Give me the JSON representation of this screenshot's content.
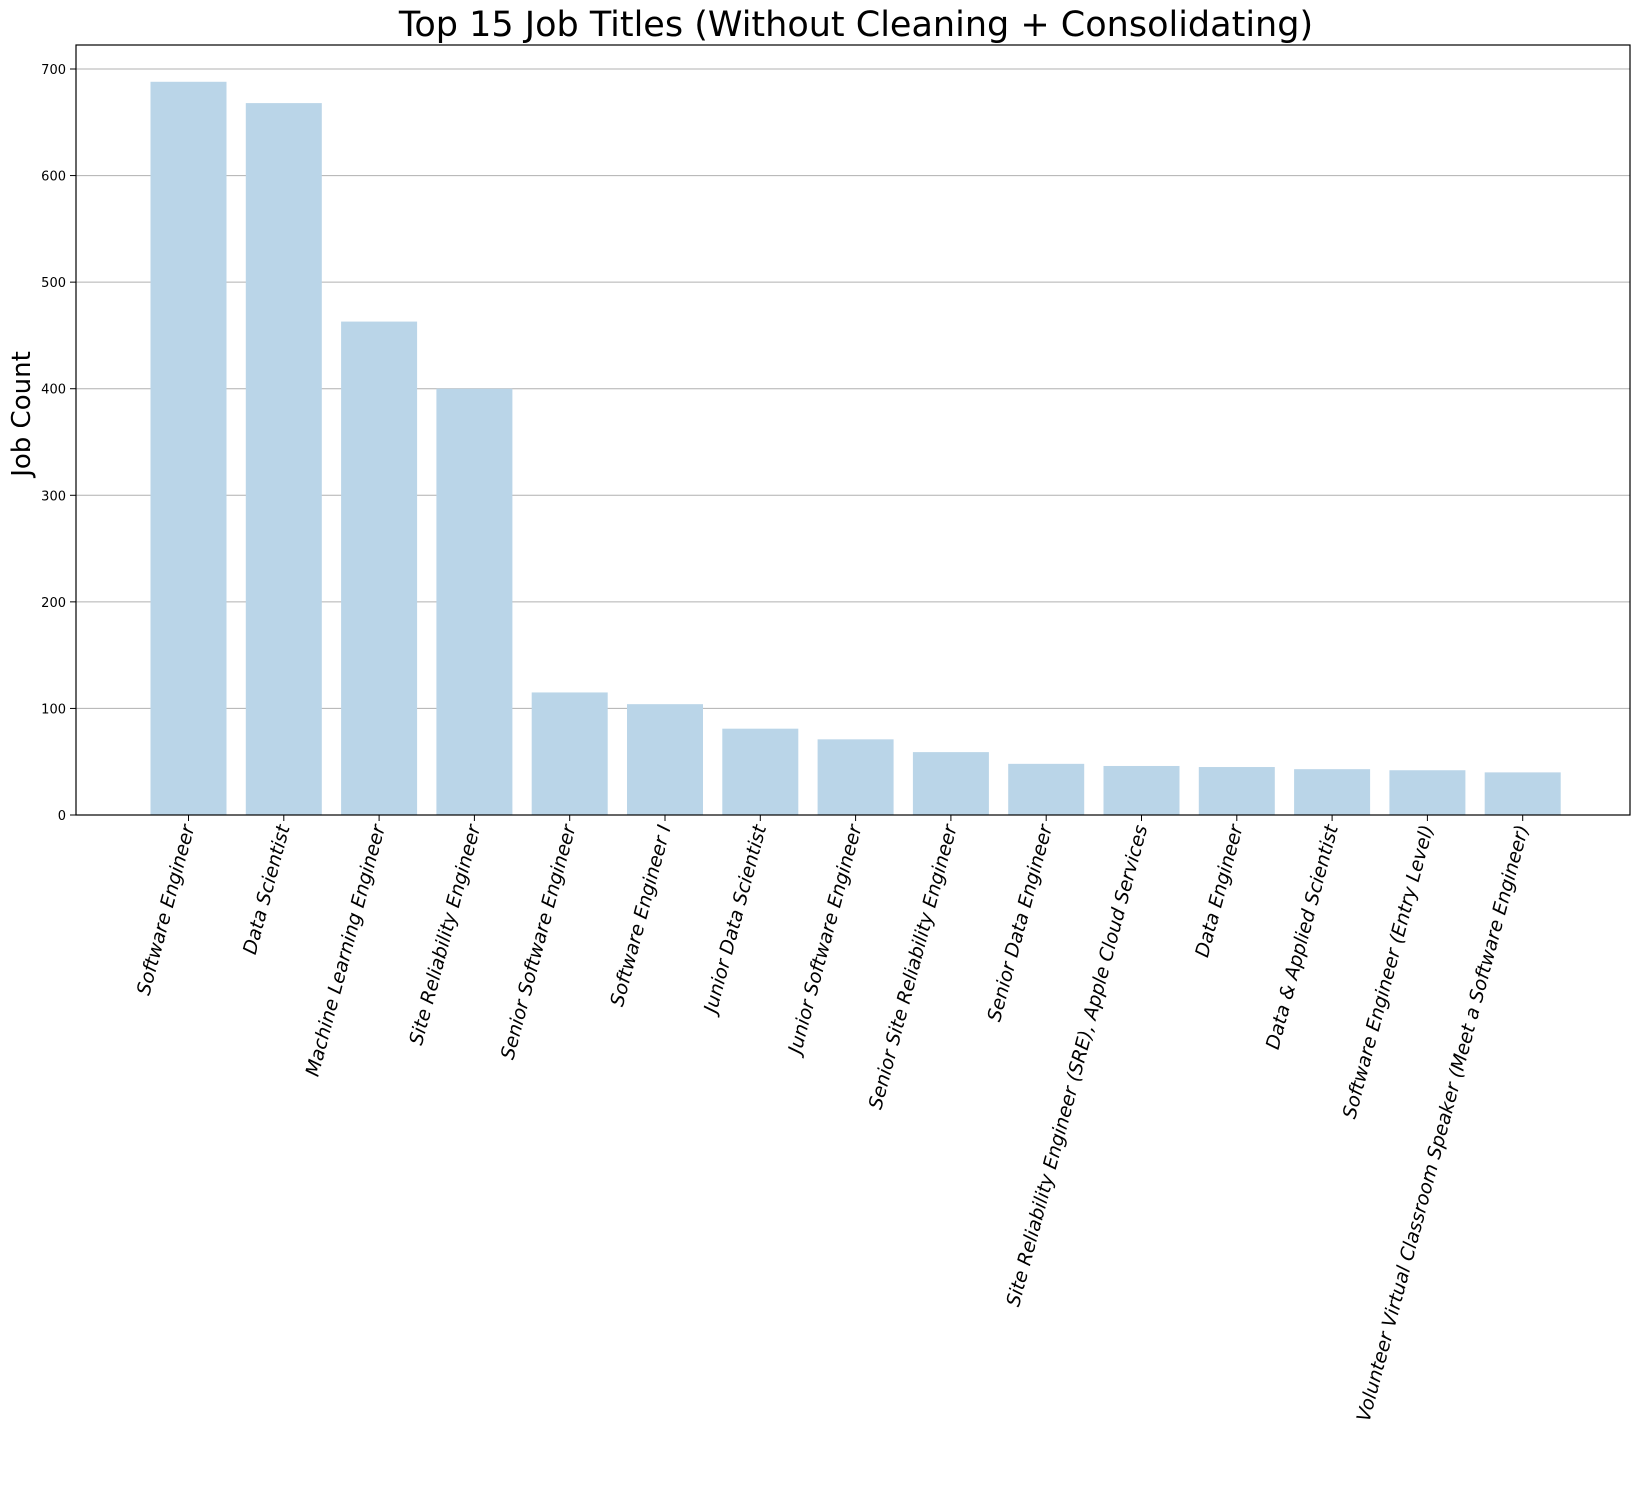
{
  "chart_data": {
    "type": "bar",
    "title": "Top 15 Job Titles (Without Cleaning + Consolidating)",
    "xlabel": "",
    "ylabel": "Job Count",
    "categories": [
      "Software Engineer",
      "Data Scientist",
      "Machine Learning Engineer",
      "Site Reliability Engineer",
      "Senior Software Engineer",
      "Software Engineer I",
      "Junior Data Scientist",
      "Junior Software Engineer",
      "Senior Site Reliability Engineer",
      "Senior Data Engineer",
      "Site Reliability Engineer (SRE), Apple Cloud Services",
      "Data Engineer",
      "Data & Applied Scientist",
      "Software Engineer (Entry Level)",
      "Volunteer Virtual Classroom Speaker (Meet a Software Engineer)"
    ],
    "values": [
      688,
      668,
      463,
      400,
      115,
      104,
      81,
      71,
      59,
      48,
      46,
      45,
      43,
      42,
      40
    ],
    "ylim": [
      0,
      700
    ],
    "yticks": [
      "0",
      "100",
      "200",
      "300",
      "400",
      "500",
      "600",
      "700"
    ],
    "grid": "horizontal",
    "colors": {
      "bar": "#bad5e8",
      "grid": "#b0b0b0",
      "axis": "#000000"
    }
  }
}
